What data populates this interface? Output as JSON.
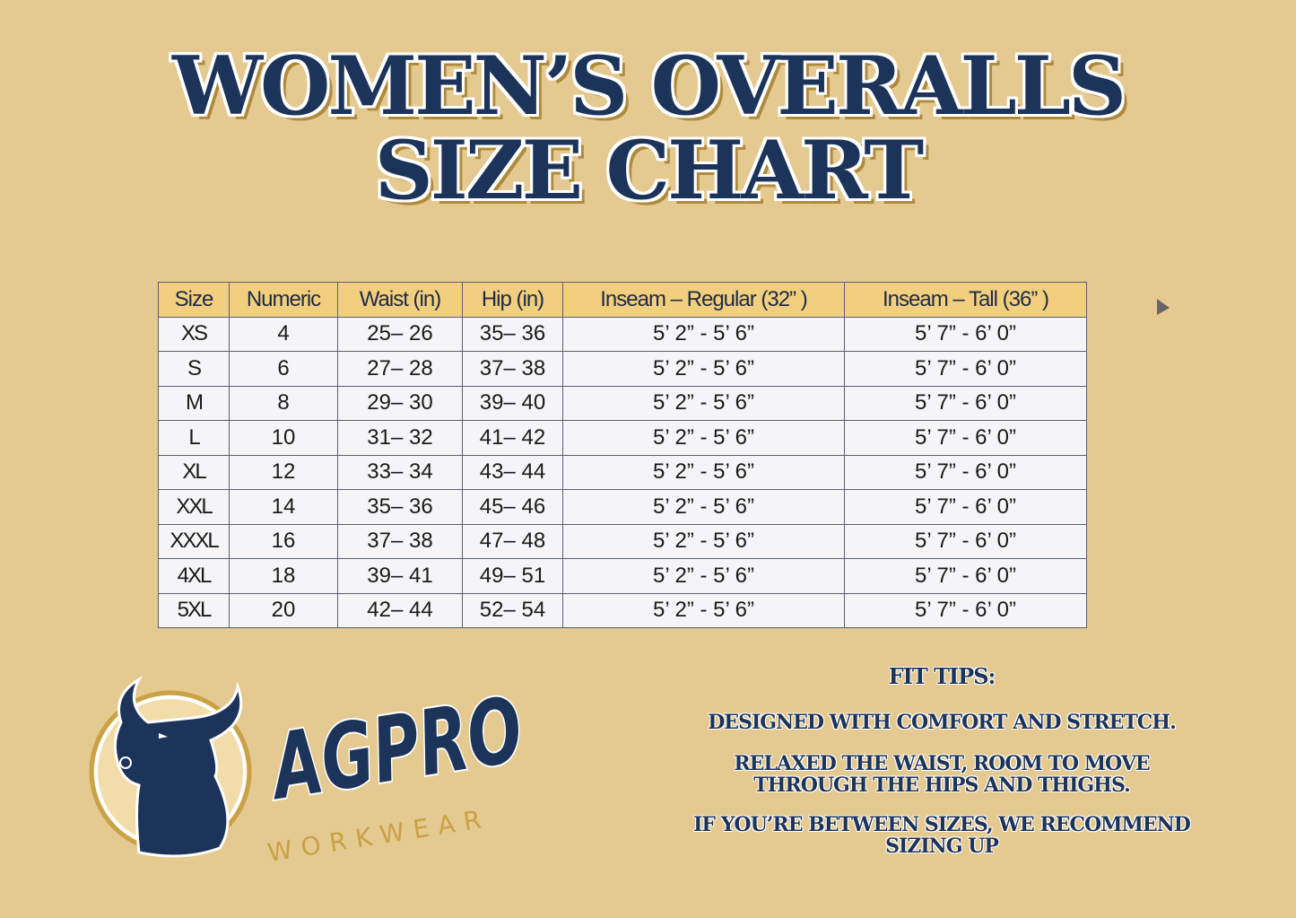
{
  "title": {
    "line1": "WOMEN’S OVERALLS",
    "line2": "SIZE CHART"
  },
  "table": {
    "headers": [
      "Size",
      "Numeric",
      "Waist (in)",
      "Hip (in)",
      "Inseam –  Regular (32” )",
      "Inseam –  Tall (36” )"
    ],
    "rows": [
      [
        "XS",
        "4",
        "25– 26",
        "35– 36",
        "5’ 2” - 5’ 6”",
        "5’ 7” - 6’ 0”"
      ],
      [
        "S",
        "6",
        "27– 28",
        "37– 38",
        "5’ 2” - 5’ 6”",
        "5’ 7” - 6’ 0”"
      ],
      [
        "M",
        "8",
        "29– 30",
        "39– 40",
        "5’ 2” - 5’ 6”",
        "5’ 7” - 6’ 0”"
      ],
      [
        "L",
        "10",
        "31– 32",
        "41– 42",
        "5’ 2” - 5’ 6”",
        "5’ 7” - 6’ 0”"
      ],
      [
        "XL",
        "12",
        "33– 34",
        "43– 44",
        "5’ 2” - 5’ 6”",
        "5’ 7” - 6’ 0”"
      ],
      [
        "XXL",
        "14",
        "35– 36",
        "45– 46",
        "5’ 2” - 5’ 6”",
        "5’ 7” - 6’ 0”"
      ],
      [
        "XXXL",
        "16",
        "37– 38",
        "47– 48",
        "5’ 2” - 5’ 6”",
        "5’ 7” - 6’ 0”"
      ],
      [
        "4XL",
        "18",
        "39– 41",
        "49– 51",
        "5’ 2” - 5’ 6”",
        "5’ 7” - 6’ 0”"
      ],
      [
        "5XL",
        "20",
        "42– 44",
        "52– 54",
        "5’ 2” - 5’ 6”",
        "5’ 7” - 6’ 0”"
      ]
    ]
  },
  "logo": {
    "brand": "AGPRO",
    "sub": "WORKWEAR",
    "icon": "bull-head-icon"
  },
  "fit_tips": {
    "heading": "FIT TIPS:",
    "tip1": "DESIGNED WITH COMFORT AND STRETCH.",
    "tip2_line1": "RELAXED THE WAIST, ROOM TO MOVE",
    "tip2_line2": "THROUGH THE HIPS AND THIGHS.",
    "tip3_line1": "IF YOU’RE BETWEEN SIZES, WE RECOMMEND",
    "tip3_line2": "SIZING UP"
  },
  "colors": {
    "background": "#e4c991",
    "navy": "#1c3459",
    "header": "#f1cf7f",
    "gold": "#c9a246"
  }
}
